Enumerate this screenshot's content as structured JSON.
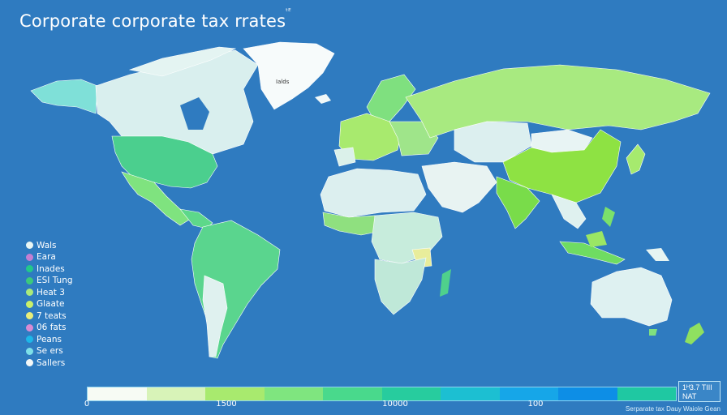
{
  "map": {
    "title": "Corporate corporate tax rrates",
    "title_mark": "ᵗᴱ"
  },
  "legend": {
    "items": [
      {
        "label": "Wals",
        "color": "#e9f6f4"
      },
      {
        "label": "Eara",
        "color": "#c47fd2"
      },
      {
        "label": "Inades",
        "color": "#22c98a"
      },
      {
        "label": "ESI Tung",
        "color": "#3cc97c"
      },
      {
        "label": "Heat 3",
        "color": "#a9ea7b"
      },
      {
        "label": "Glaate",
        "color": "#c9f06a"
      },
      {
        "label": "7 teats",
        "color": "#e8ee7a"
      },
      {
        "label": "06 fats",
        "color": "#d98bd3"
      },
      {
        "label": "Peans",
        "color": "#1db7e8"
      },
      {
        "label": "Se ers",
        "color": "#7ee0e8"
      },
      {
        "label": "Sallers",
        "color": "#f4f8f8"
      }
    ]
  },
  "scale": {
    "colors": [
      "#f7fbf4",
      "#d8f3b8",
      "#a8ea6e",
      "#7fe57f",
      "#49d98c",
      "#27cc9e",
      "#1cbfd2",
      "#16a6e8",
      "#0d8ee6",
      "#1fc8a2"
    ],
    "ticks": [
      {
        "label": "0",
        "value": 0
      },
      {
        "label": "1500",
        "value": 0.25
      },
      {
        "label": "10000",
        "value": 0.65
      },
      {
        "label": "100",
        "value": 0.9
      }
    ]
  },
  "corner_box": {
    "line1": "1ᴴ3.7 TIII",
    "line2": "NAT"
  },
  "source": "Serparate tax Dauy Waiole Gean"
}
